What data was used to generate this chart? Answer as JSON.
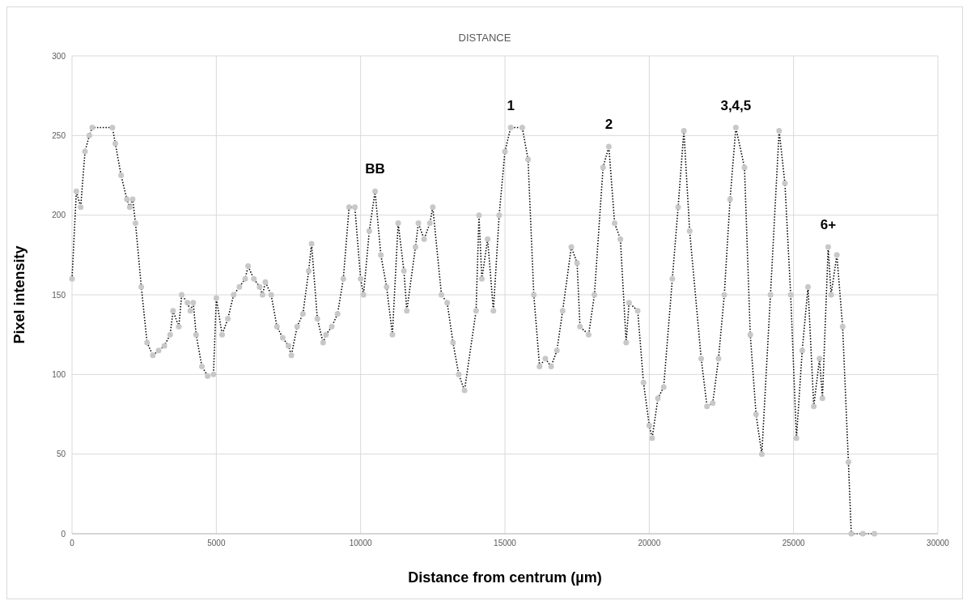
{
  "chart_data": {
    "type": "line",
    "title": "DISTANCE",
    "xlabel": "Distance from centrum (µm)",
    "ylabel": "Pixel intensity",
    "x": [
      0,
      150,
      300,
      450,
      600,
      700,
      1400,
      1500,
      1700,
      1900,
      2000,
      2100,
      2200,
      2400,
      2600,
      2800,
      3000,
      3200,
      3400,
      3500,
      3700,
      3800,
      4000,
      4100,
      4200,
      4300,
      4500,
      4700,
      4900,
      5000,
      5200,
      5400,
      5600,
      5800,
      6000,
      6100,
      6300,
      6500,
      6600,
      6700,
      6900,
      7100,
      7300,
      7500,
      7600,
      7800,
      8000,
      8200,
      8300,
      8500,
      8700,
      8800,
      9000,
      9200,
      9400,
      9600,
      9800,
      10000,
      10100,
      10300,
      10500,
      10700,
      10900,
      11100,
      11300,
      11500,
      11600,
      11900,
      12000,
      12200,
      12400,
      12500,
      12800,
      13000,
      13200,
      13400,
      13600,
      14000,
      14100,
      14200,
      14400,
      14600,
      14800,
      15000,
      15200,
      15600,
      15800,
      16000,
      16200,
      16400,
      16600,
      16800,
      17000,
      17300,
      17500,
      17600,
      17900,
      18100,
      18400,
      18600,
      18800,
      19000,
      19200,
      19300,
      19600,
      19800,
      20000,
      20100,
      20300,
      20500,
      20800,
      21000,
      21200,
      21400,
      21800,
      22000,
      22200,
      22400,
      22600,
      22800,
      23000,
      23300,
      23500,
      23700,
      23900,
      24200,
      24500,
      24700,
      24900,
      25100,
      25300,
      25500,
      25700,
      25900,
      26000,
      26200,
      26300,
      26500,
      26700,
      26900,
      27000,
      27400,
      27800
    ],
    "series": [
      {
        "type": "scatter",
        "color": "#c8c8c8",
        "marker": "circle",
        "values": [
          160,
          215,
          205,
          240,
          250,
          255,
          255,
          245,
          225,
          210,
          205,
          210,
          195,
          155,
          120,
          112,
          115,
          118,
          125,
          140,
          130,
          150,
          145,
          140,
          145,
          125,
          105,
          99,
          100,
          148,
          125,
          135,
          150,
          155,
          160,
          168,
          160,
          155,
          150,
          158,
          150,
          130,
          123,
          118,
          112,
          130,
          138,
          165,
          182,
          135,
          120,
          125,
          130,
          138,
          160,
          205,
          205,
          160,
          150,
          190,
          215,
          175,
          155,
          125,
          195,
          165,
          140,
          180,
          195,
          185,
          195,
          205,
          150,
          145,
          120,
          100,
          90,
          140,
          200,
          160,
          185,
          140,
          200,
          240,
          255,
          255,
          235,
          150,
          105,
          110,
          105,
          115,
          140,
          180,
          170,
          130,
          125,
          150,
          230,
          243,
          195,
          185,
          120,
          145,
          140,
          95,
          68,
          60,
          85,
          92,
          160,
          205,
          253,
          190,
          110,
          80,
          82,
          110,
          150,
          210,
          255,
          230,
          125,
          75,
          50,
          150,
          253,
          220,
          150,
          60,
          115,
          155,
          80,
          110,
          85,
          180,
          150,
          175,
          130,
          45,
          0,
          0,
          0
        ]
      },
      {
        "type": "line",
        "color": "#000000",
        "line_style": "dotted",
        "marker": "none",
        "values": [
          160,
          215,
          205,
          240,
          250,
          255,
          255,
          245,
          225,
          210,
          205,
          210,
          195,
          155,
          120,
          112,
          115,
          118,
          125,
          140,
          130,
          150,
          145,
          140,
          145,
          125,
          105,
          99,
          100,
          148,
          125,
          135,
          150,
          155,
          160,
          168,
          160,
          155,
          150,
          158,
          150,
          130,
          123,
          118,
          112,
          130,
          138,
          165,
          182,
          135,
          120,
          125,
          130,
          138,
          160,
          205,
          205,
          160,
          150,
          190,
          215,
          175,
          155,
          125,
          195,
          165,
          140,
          180,
          195,
          185,
          195,
          205,
          150,
          145,
          120,
          100,
          90,
          140,
          200,
          160,
          185,
          140,
          200,
          240,
          255,
          255,
          235,
          150,
          105,
          110,
          105,
          115,
          140,
          180,
          170,
          130,
          125,
          150,
          230,
          243,
          195,
          185,
          120,
          145,
          140,
          95,
          68,
          60,
          85,
          92,
          160,
          205,
          253,
          190,
          110,
          80,
          82,
          110,
          150,
          210,
          255,
          230,
          125,
          75,
          50,
          150,
          253,
          220,
          150,
          60,
          115,
          155,
          80,
          110,
          85,
          180,
          150,
          175,
          130,
          45,
          0,
          0,
          0
        ]
      }
    ],
    "xlim": [
      0,
      30000
    ],
    "xticks": [
      0,
      5000,
      10000,
      15000,
      20000,
      25000,
      30000
    ],
    "ylim": [
      0,
      300
    ],
    "yticks": [
      0,
      50,
      100,
      150,
      200,
      250,
      300
    ],
    "grid": true,
    "legend": false,
    "annotations": [
      {
        "text": "BB",
        "x": 10500,
        "y": 215
      },
      {
        "text": "1",
        "x": 15200,
        "y": 255
      },
      {
        "text": "2",
        "x": 18600,
        "y": 243
      },
      {
        "text": "3,4,5",
        "x": 23000,
        "y": 255
      },
      {
        "text": "6+",
        "x": 26200,
        "y": 180
      }
    ]
  }
}
